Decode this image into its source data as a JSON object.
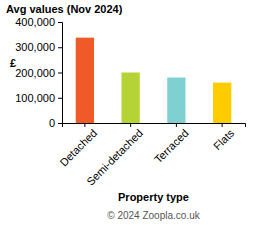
{
  "chart_data": {
    "type": "bar",
    "title": "Avg values (Nov 2024)",
    "x_label": "Property type",
    "y_label": "£",
    "categories": [
      "Detached",
      "Semi-detached",
      "Terraced",
      "Flats"
    ],
    "values": [
      338000,
      200000,
      180000,
      160000
    ],
    "colors": [
      "#f05a28",
      "#b5d334",
      "#7fd1d1",
      "#ffcc00"
    ],
    "ylim": [
      0,
      400000
    ],
    "yticks": [
      0,
      {
        "value": 100000,
        "label": "100,000"
      },
      {
        "value": 200000,
        "label": "200,000"
      },
      {
        "value": 300000,
        "label": "300,000"
      },
      {
        "value": 400000,
        "label": "400,000"
      }
    ],
    "grid": false,
    "annotations": [
      "© 2024 Zoopla.co.uk"
    ]
  }
}
